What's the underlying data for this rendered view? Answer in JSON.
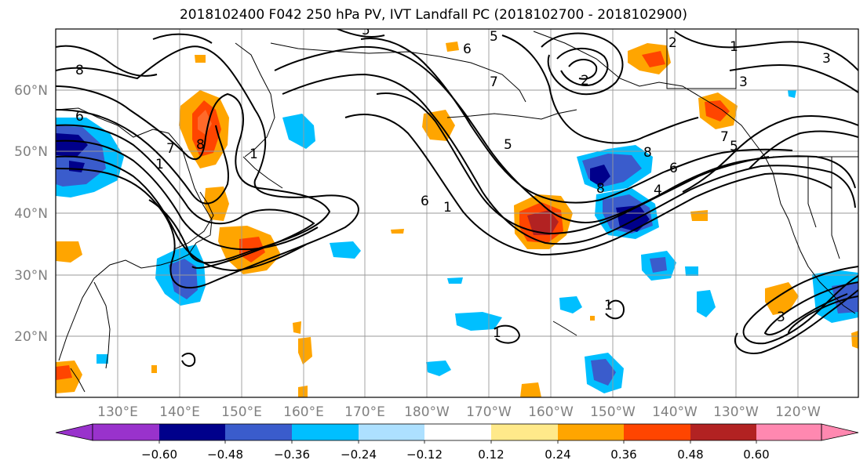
{
  "title": "2018102400 F042 250 hPa PV, IVT Landfall PC (2018102700 - 2018102900)",
  "colors": {
    "neg_060": "#9932CC",
    "neg_048": "#00008B",
    "neg_036": "#3A5CCC",
    "neg_024": "#00BFFF",
    "neg_012": "#ADE0FF",
    "zero": "#FFFFFF",
    "pos_012": "#FFE98A",
    "pos_024": "#FFA500",
    "pos_036": "#FF4500",
    "pos_048": "#B22222",
    "pos_060": "#FF88B0"
  },
  "lat_labels": [
    "60°N",
    "50°N",
    "40°N",
    "30°N",
    "20°N"
  ],
  "lon_labels": [
    "130°E",
    "140°E",
    "150°E",
    "160°E",
    "170°E",
    "180°W",
    "170°W",
    "160°W",
    "150°W",
    "140°W",
    "130°W",
    "120°W"
  ],
  "colorbar": {
    "ticks": [
      "−0.60",
      "−0.48",
      "−0.36",
      "−0.24",
      "−0.12",
      "0.12",
      "0.24",
      "0.36",
      "0.48",
      "0.60"
    ]
  },
  "contour_labels": [
    "8",
    "6",
    "5",
    "6",
    "7",
    "1",
    "8",
    "1",
    "5",
    "6",
    "8",
    "2",
    "2",
    "1",
    "3",
    "3",
    "7",
    "5",
    "6",
    "8",
    "4",
    "7",
    "3",
    "1",
    "1",
    "1",
    "5"
  ]
}
